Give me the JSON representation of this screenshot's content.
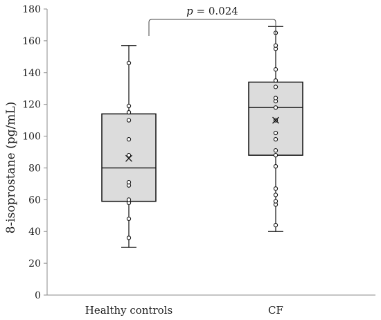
{
  "chart_data": {
    "type": "boxplot",
    "ylabel": "8-isoprostane (pg/mL)",
    "ylim": [
      0,
      180
    ],
    "yticks": [
      0,
      20,
      40,
      60,
      80,
      100,
      120,
      140,
      160,
      180
    ],
    "categories": [
      "Healthy controls",
      "CF"
    ],
    "boxes": [
      {
        "category": "Healthy controls",
        "whisker_low": 30,
        "q1": 59,
        "median": 80,
        "q3": 114,
        "whisker_high": 157,
        "mean": 86,
        "points": [
          36,
          48,
          58,
          60,
          69,
          71,
          88,
          98,
          110,
          115,
          119,
          146
        ]
      },
      {
        "category": "CF",
        "whisker_low": 40,
        "q1": 88,
        "median": 118,
        "q3": 134,
        "whisker_high": 169,
        "mean": 110,
        "points": [
          44,
          57,
          59,
          63,
          67,
          81,
          88,
          91,
          98,
          102,
          110,
          118,
          122,
          124,
          131,
          135,
          142,
          155,
          157,
          165
        ]
      }
    ],
    "annotation": {
      "text_prefix": "p",
      "text_value": " = 0.024",
      "from": "Healthy controls",
      "to": "CF"
    },
    "grid": false,
    "legend": "none"
  }
}
